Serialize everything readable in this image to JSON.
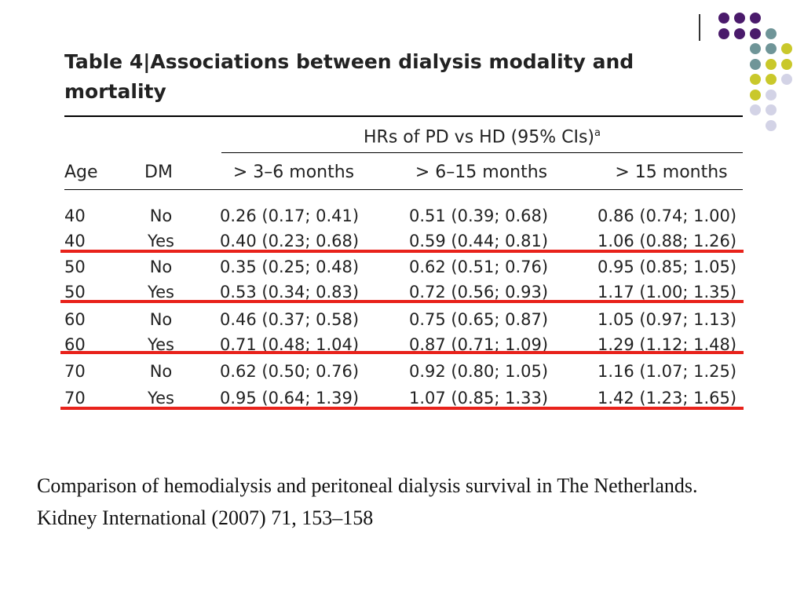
{
  "decor": {
    "dots": [
      {
        "row": 0,
        "col": 0,
        "color": "#4a1a6b"
      },
      {
        "row": 0,
        "col": 1,
        "color": "#4a1a6b"
      },
      {
        "row": 0,
        "col": 2,
        "color": "#4a1a6b"
      },
      {
        "row": 1,
        "col": 0,
        "color": "#4a1a6b"
      },
      {
        "row": 1,
        "col": 1,
        "color": "#4a1a6b"
      },
      {
        "row": 1,
        "col": 2,
        "color": "#4a1a6b"
      },
      {
        "row": 1,
        "col": 3,
        "color": "#6f9598"
      },
      {
        "row": 2,
        "col": 2,
        "color": "#6f9598"
      },
      {
        "row": 2,
        "col": 3,
        "color": "#6f9598"
      },
      {
        "row": 2,
        "col": 4,
        "color": "#c9c82b"
      },
      {
        "row": 3,
        "col": 2,
        "color": "#6f9598"
      },
      {
        "row": 3,
        "col": 3,
        "color": "#c9c82b"
      },
      {
        "row": 3,
        "col": 4,
        "color": "#c9c82b"
      },
      {
        "row": 4,
        "col": 2,
        "color": "#c9c82b"
      },
      {
        "row": 4,
        "col": 3,
        "color": "#c9c82b"
      },
      {
        "row": 4,
        "col": 4,
        "color": "#d3d3e6"
      },
      {
        "row": 5,
        "col": 2,
        "color": "#c9c82b"
      },
      {
        "row": 5,
        "col": 3,
        "color": "#d3d3e6"
      },
      {
        "row": 6,
        "col": 2,
        "color": "#d3d3e6"
      },
      {
        "row": 6,
        "col": 3,
        "color": "#d3d3e6"
      },
      {
        "row": 7,
        "col": 3,
        "color": "#d3d3e6"
      }
    ],
    "highlight_color": "#e8221b"
  },
  "table": {
    "title": "Table 4|Associations between dialysis modality and mortality",
    "group_header": "HRs of PD vs HD (95% CIs)",
    "group_header_sup": "a",
    "columns": [
      "Age",
      "DM",
      "> 3–6 months",
      "> 6–15 months",
      "> 15 months"
    ],
    "rows": [
      [
        "40",
        "No",
        "0.26 (0.17; 0.41)",
        "0.51 (0.39; 0.68)",
        "0.86 (0.74; 1.00)"
      ],
      [
        "40",
        "Yes",
        "0.40 (0.23; 0.68)",
        "0.59 (0.44; 0.81)",
        "1.06 (0.88; 1.26)"
      ],
      [
        "50",
        "No",
        "0.35 (0.25; 0.48)",
        "0.62 (0.51; 0.76)",
        "0.95 (0.85; 1.05)"
      ],
      [
        "50",
        "Yes",
        "0.53 (0.34; 0.83)",
        "0.72 (0.56; 0.93)",
        "1.17 (1.00; 1.35)"
      ],
      [
        "60",
        "No",
        "0.46 (0.37; 0.58)",
        "0.75 (0.65; 0.87)",
        "1.05 (0.97; 1.13)"
      ],
      [
        "60",
        "Yes",
        "0.71 (0.48; 1.04)",
        "0.87 (0.71; 1.09)",
        "1.29 (1.12; 1.48)"
      ],
      [
        "70",
        "No",
        "0.62 (0.50; 0.76)",
        "0.92 (0.80; 1.05)",
        "1.16 (1.07; 1.25)"
      ],
      [
        "70",
        "Yes",
        "0.95 (0.64; 1.39)",
        "1.07 (0.85; 1.33)",
        "1.42 (1.23; 1.65)"
      ]
    ]
  },
  "caption": {
    "line1": "Comparison of hemodialysis and peritoneal dialysis survival in The Netherlands.",
    "line2": "Kidney International (2007) 71, 153–158"
  }
}
